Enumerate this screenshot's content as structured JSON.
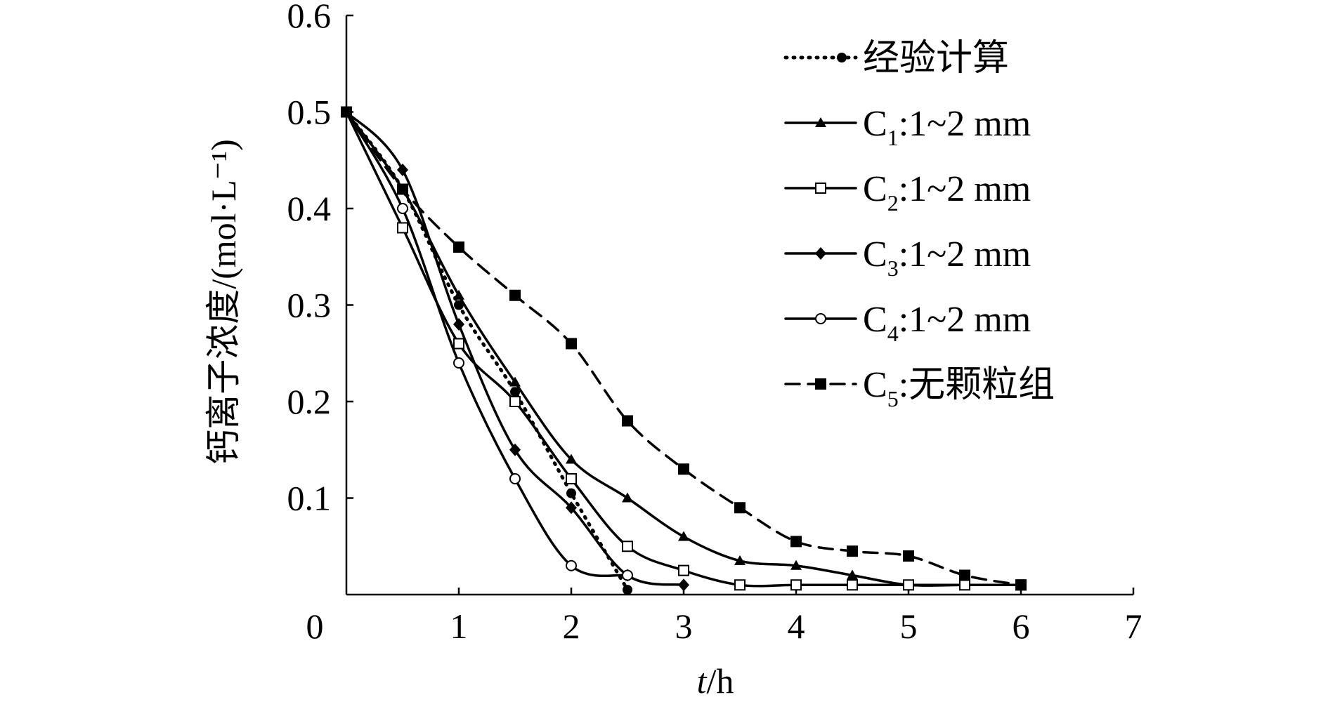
{
  "chart_data": {
    "type": "line",
    "title": "",
    "xlabel_italic": "t",
    "xlabel_rest": "/h",
    "ylabel": "钙离子浓度/(mol·L⁻¹)",
    "xlim": [
      0,
      7
    ],
    "ylim": [
      0,
      0.6
    ],
    "x_ticks": [
      "0",
      "1",
      "2",
      "3",
      "4",
      "5",
      "6",
      "7"
    ],
    "y_ticks": [
      "0.1",
      "0.2",
      "0.3",
      "0.4",
      "0.5",
      "0.6"
    ],
    "legend_position": "top-right",
    "series": [
      {
        "name": "经验计算",
        "legend_main": "经验计算",
        "legend_sub": "",
        "legend_suffix": "",
        "style": "dotted",
        "marker": "circle-filled",
        "color": "#000000",
        "x": [
          0,
          0.5,
          1,
          1.5,
          2,
          2.5
        ],
        "y": [
          0.5,
          0.42,
          0.3,
          0.21,
          0.105,
          0.005
        ]
      },
      {
        "name": "C1:1~2 mm",
        "legend_main": "C",
        "legend_sub": "1",
        "legend_suffix": ":1~2 mm",
        "style": "solid",
        "marker": "triangle-filled",
        "color": "#000000",
        "x": [
          0,
          0.5,
          1,
          1.5,
          2,
          2.5,
          3,
          3.5,
          4,
          4.5,
          5,
          5.5,
          6
        ],
        "y": [
          0.5,
          0.42,
          0.31,
          0.22,
          0.14,
          0.1,
          0.06,
          0.035,
          0.03,
          0.02,
          0.01,
          0.01,
          0.01
        ]
      },
      {
        "name": "C2:1~2 mm",
        "legend_main": "C",
        "legend_sub": "2",
        "legend_suffix": ":1~2 mm",
        "style": "solid",
        "marker": "square-open",
        "color": "#000000",
        "x": [
          0,
          0.5,
          1,
          1.5,
          2,
          2.5,
          3,
          3.5,
          4,
          4.5,
          5,
          5.5,
          6
        ],
        "y": [
          0.5,
          0.38,
          0.26,
          0.2,
          0.12,
          0.05,
          0.025,
          0.01,
          0.01,
          0.01,
          0.01,
          0.01,
          0.01
        ]
      },
      {
        "name": "C3:1~2 mm",
        "legend_main": "C",
        "legend_sub": "3",
        "legend_suffix": ":1~2 mm",
        "style": "solid",
        "marker": "diamond-filled",
        "color": "#000000",
        "x": [
          0,
          0.5,
          1,
          1.5,
          2,
          2.5,
          3
        ],
        "y": [
          0.5,
          0.44,
          0.28,
          0.15,
          0.09,
          0.02,
          0.01
        ]
      },
      {
        "name": "C4:1~2 mm",
        "legend_main": "C",
        "legend_sub": "4",
        "legend_suffix": ":1~2 mm",
        "style": "solid",
        "marker": "circle-open",
        "color": "#000000",
        "x": [
          0,
          0.5,
          1,
          1.5,
          2,
          2.5
        ],
        "y": [
          0.5,
          0.4,
          0.24,
          0.12,
          0.03,
          0.02
        ]
      },
      {
        "name": "C5:无颗粒组",
        "legend_main": "C",
        "legend_sub": "5",
        "legend_suffix": ":无颗粒组",
        "style": "dashed",
        "marker": "square-filled",
        "color": "#000000",
        "x": [
          0,
          0.5,
          1,
          1.5,
          2,
          2.5,
          3,
          3.5,
          4,
          4.5,
          5,
          5.5,
          6
        ],
        "y": [
          0.5,
          0.42,
          0.36,
          0.31,
          0.26,
          0.18,
          0.13,
          0.09,
          0.055,
          0.045,
          0.04,
          0.02,
          0.01
        ]
      }
    ]
  }
}
